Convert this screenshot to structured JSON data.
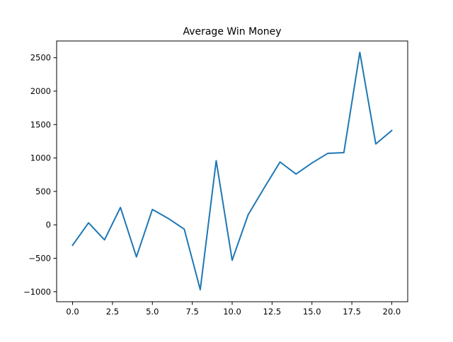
{
  "chart_data": {
    "type": "line",
    "title": "Average Win Money",
    "xlabel": "",
    "ylabel": "",
    "xlim": [
      -1,
      21
    ],
    "ylim": [
      -1150,
      2750
    ],
    "x_ticks": [
      0.0,
      2.5,
      5.0,
      7.5,
      10.0,
      12.5,
      15.0,
      17.5,
      20.0
    ],
    "x_tick_labels": [
      "0.0",
      "2.5",
      "5.0",
      "7.5",
      "10.0",
      "12.5",
      "15.0",
      "17.5",
      "20.0"
    ],
    "y_ticks": [
      -1000,
      -500,
      0,
      500,
      1000,
      1500,
      2000,
      2500
    ],
    "y_tick_labels": [
      "−1000",
      "−500",
      "0",
      "500",
      "1000",
      "1500",
      "2000",
      "2500"
    ],
    "grid": false,
    "series": [
      {
        "color": "#1f77b4",
        "x": [
          0,
          1,
          2,
          3,
          4,
          5,
          6,
          7,
          8,
          9,
          10,
          11,
          12,
          13,
          14,
          15,
          16,
          17,
          18,
          19,
          20
        ],
        "y": [
          -305,
          30,
          -225,
          260,
          -480,
          230,
          95,
          -65,
          -970,
          960,
          -530,
          150,
          550,
          940,
          760,
          925,
          1070,
          1080,
          2580,
          1210,
          1410
        ]
      }
    ]
  }
}
